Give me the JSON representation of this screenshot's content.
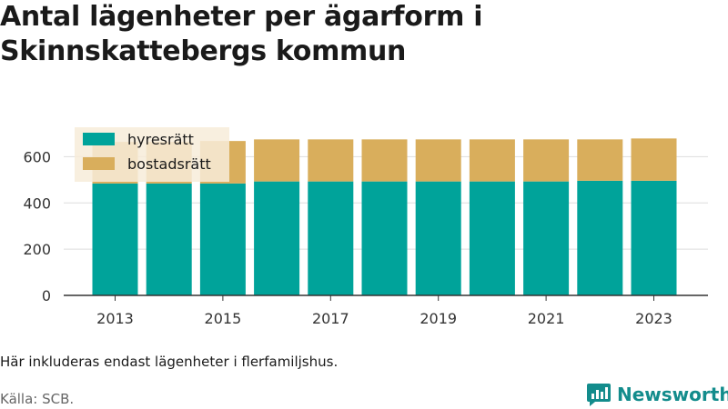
{
  "title": "Antal lägenheter per ägarform i Skinnskattebergs kommun",
  "note": "Här inkluderas endast lägenheter i flerfamiljshus.",
  "source": "Källa: SCB.",
  "brand": "Newsworthy",
  "colors": {
    "hyresratt": "#00a39a",
    "bostadsratt": "#d9ae5c",
    "grid": "#dddddd",
    "axis": "#333333",
    "legend_bg": "#f7ecd9",
    "brand": "#138c8c"
  },
  "chart_data": {
    "type": "bar",
    "stacked": true,
    "categories": [
      "2013",
      "2014",
      "2015",
      "2016",
      "2017",
      "2018",
      "2019",
      "2020",
      "2021",
      "2022",
      "2023"
    ],
    "x_tick_labels": [
      "2013",
      "2015",
      "2017",
      "2019",
      "2021",
      "2023"
    ],
    "y_ticks": [
      "0",
      "200",
      "400",
      "600"
    ],
    "ylim": [
      0,
      700
    ],
    "grid": "horizontal",
    "legend_position": "top-left",
    "series": [
      {
        "name": "hyresrätt",
        "color_key": "hyresratt",
        "values": [
          484,
          484,
          484,
          493,
          493,
          493,
          493,
          493,
          493,
          496,
          496
        ]
      },
      {
        "name": "bostadsrätt",
        "color_key": "bostadsratt",
        "values": [
          180,
          180,
          184,
          182,
          182,
          182,
          182,
          182,
          182,
          179,
          183
        ]
      }
    ]
  }
}
